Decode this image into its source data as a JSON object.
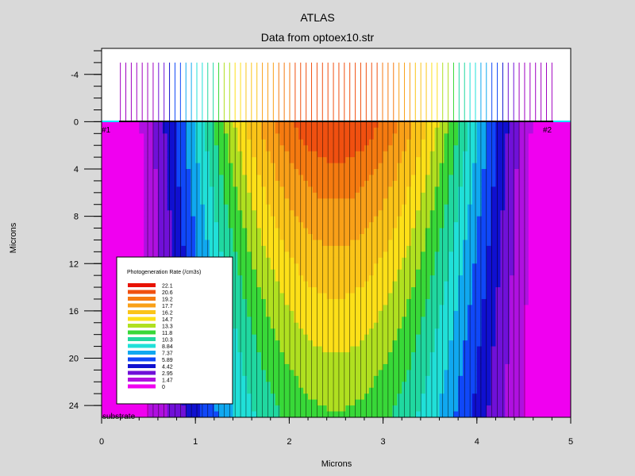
{
  "chart_data": {
    "type": "heatmap",
    "title": "ATLAS",
    "subtitle": "Data from optoex10.str",
    "xlabel": "Microns",
    "ylabel": "Microns",
    "xlim": [
      0,
      5
    ],
    "ylim": [
      25,
      -6.2
    ],
    "x_ticks": [
      0,
      1,
      2,
      3,
      4,
      5
    ],
    "y_ticks": [
      -4,
      0,
      4,
      8,
      12,
      16,
      20,
      24
    ],
    "regions": {
      "electrode_1": "#1",
      "electrode_2": "#2",
      "substrate": "substrate"
    },
    "legend": {
      "title": "Photogeneration Rate (/cm3s)",
      "levels": [
        "22.1",
        "20.6",
        "19.2",
        "17.7",
        "16.2",
        "14.7",
        "13.3",
        "11.8",
        "10.3",
        "8.84",
        "7.37",
        "5.89",
        "4.42",
        "2.95",
        "1.47",
        "0"
      ],
      "colors": [
        "#e81200",
        "#f05010",
        "#f57a10",
        "#f9a018",
        "#fbc418",
        "#fde018",
        "#b0e020",
        "#38d838",
        "#20d8a0",
        "#20e0d8",
        "#10a8f0",
        "#1048f8",
        "#1010d0",
        "#7010d8",
        "#b010e0",
        "#f000f0"
      ]
    },
    "colormap_max": 22.1,
    "beam_center_x": 2.5,
    "beam_top_y": 0,
    "beam_top_ray_x": 0.24,
    "beam_top_ray_y": -6.2,
    "ray_x_range": [
      0.2,
      4.8
    ],
    "ray_count": 80
  }
}
